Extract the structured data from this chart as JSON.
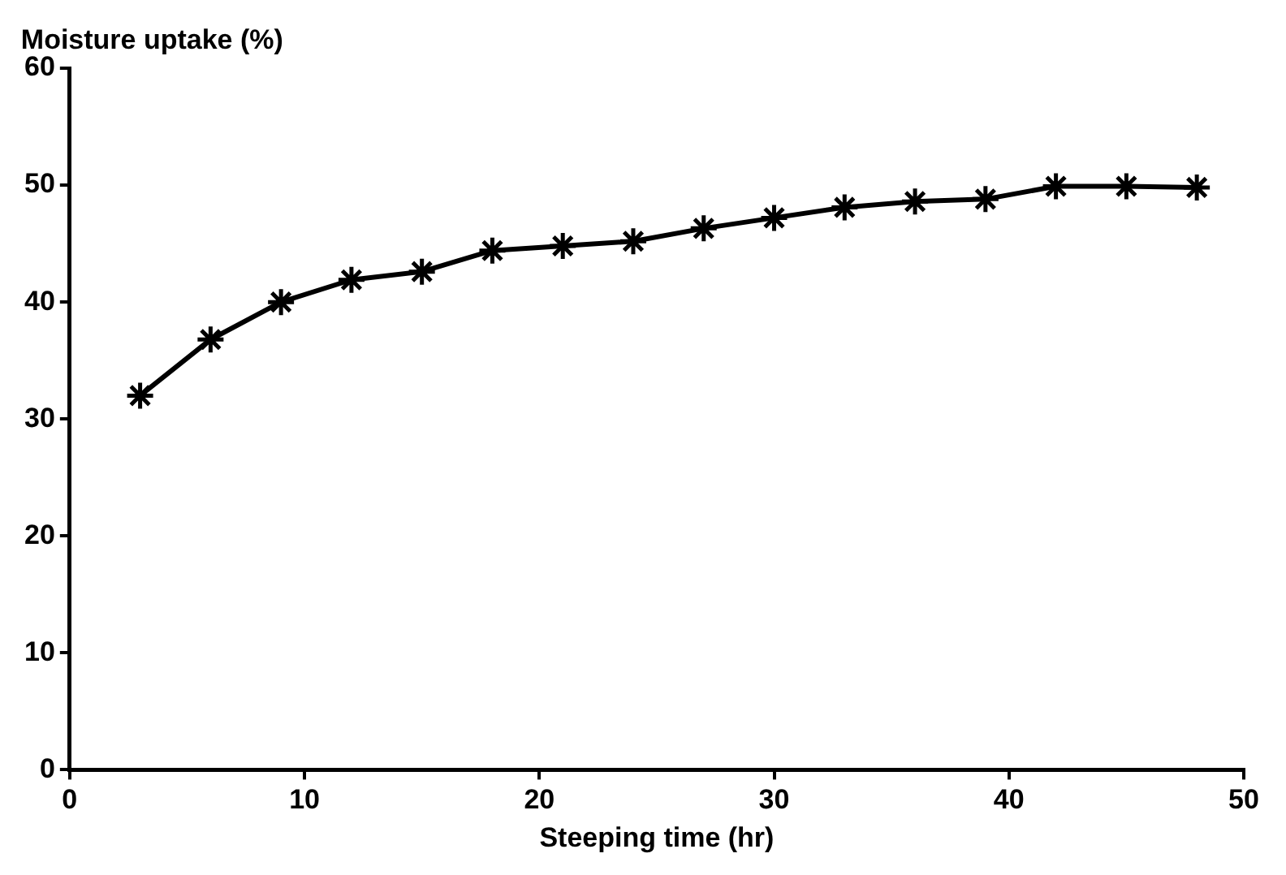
{
  "chart_data": {
    "type": "line",
    "ylabel": "Moisture uptake (%)",
    "xlabel": "Steeping time (hr)",
    "x": [
      3,
      6,
      9,
      12,
      15,
      18,
      21,
      24,
      27,
      30,
      33,
      36,
      39,
      42,
      45,
      48
    ],
    "series": [
      {
        "color": "#000000",
        "values": [
          32,
          36.8,
          40,
          41.9,
          42.6,
          44.4,
          44.8,
          45.2,
          46.3,
          47.2,
          48.1,
          48.6,
          48.8,
          49.9,
          49.9,
          49.8
        ]
      }
    ],
    "xlim": [
      0,
      50
    ],
    "xticks": [
      0,
      10,
      20,
      30,
      40,
      50
    ],
    "ylim": [
      0,
      60
    ],
    "yticks": [
      0,
      10,
      20,
      30,
      40,
      50,
      60
    ],
    "grid": false,
    "legend": false,
    "marker": "cross",
    "line_style": "solid"
  }
}
